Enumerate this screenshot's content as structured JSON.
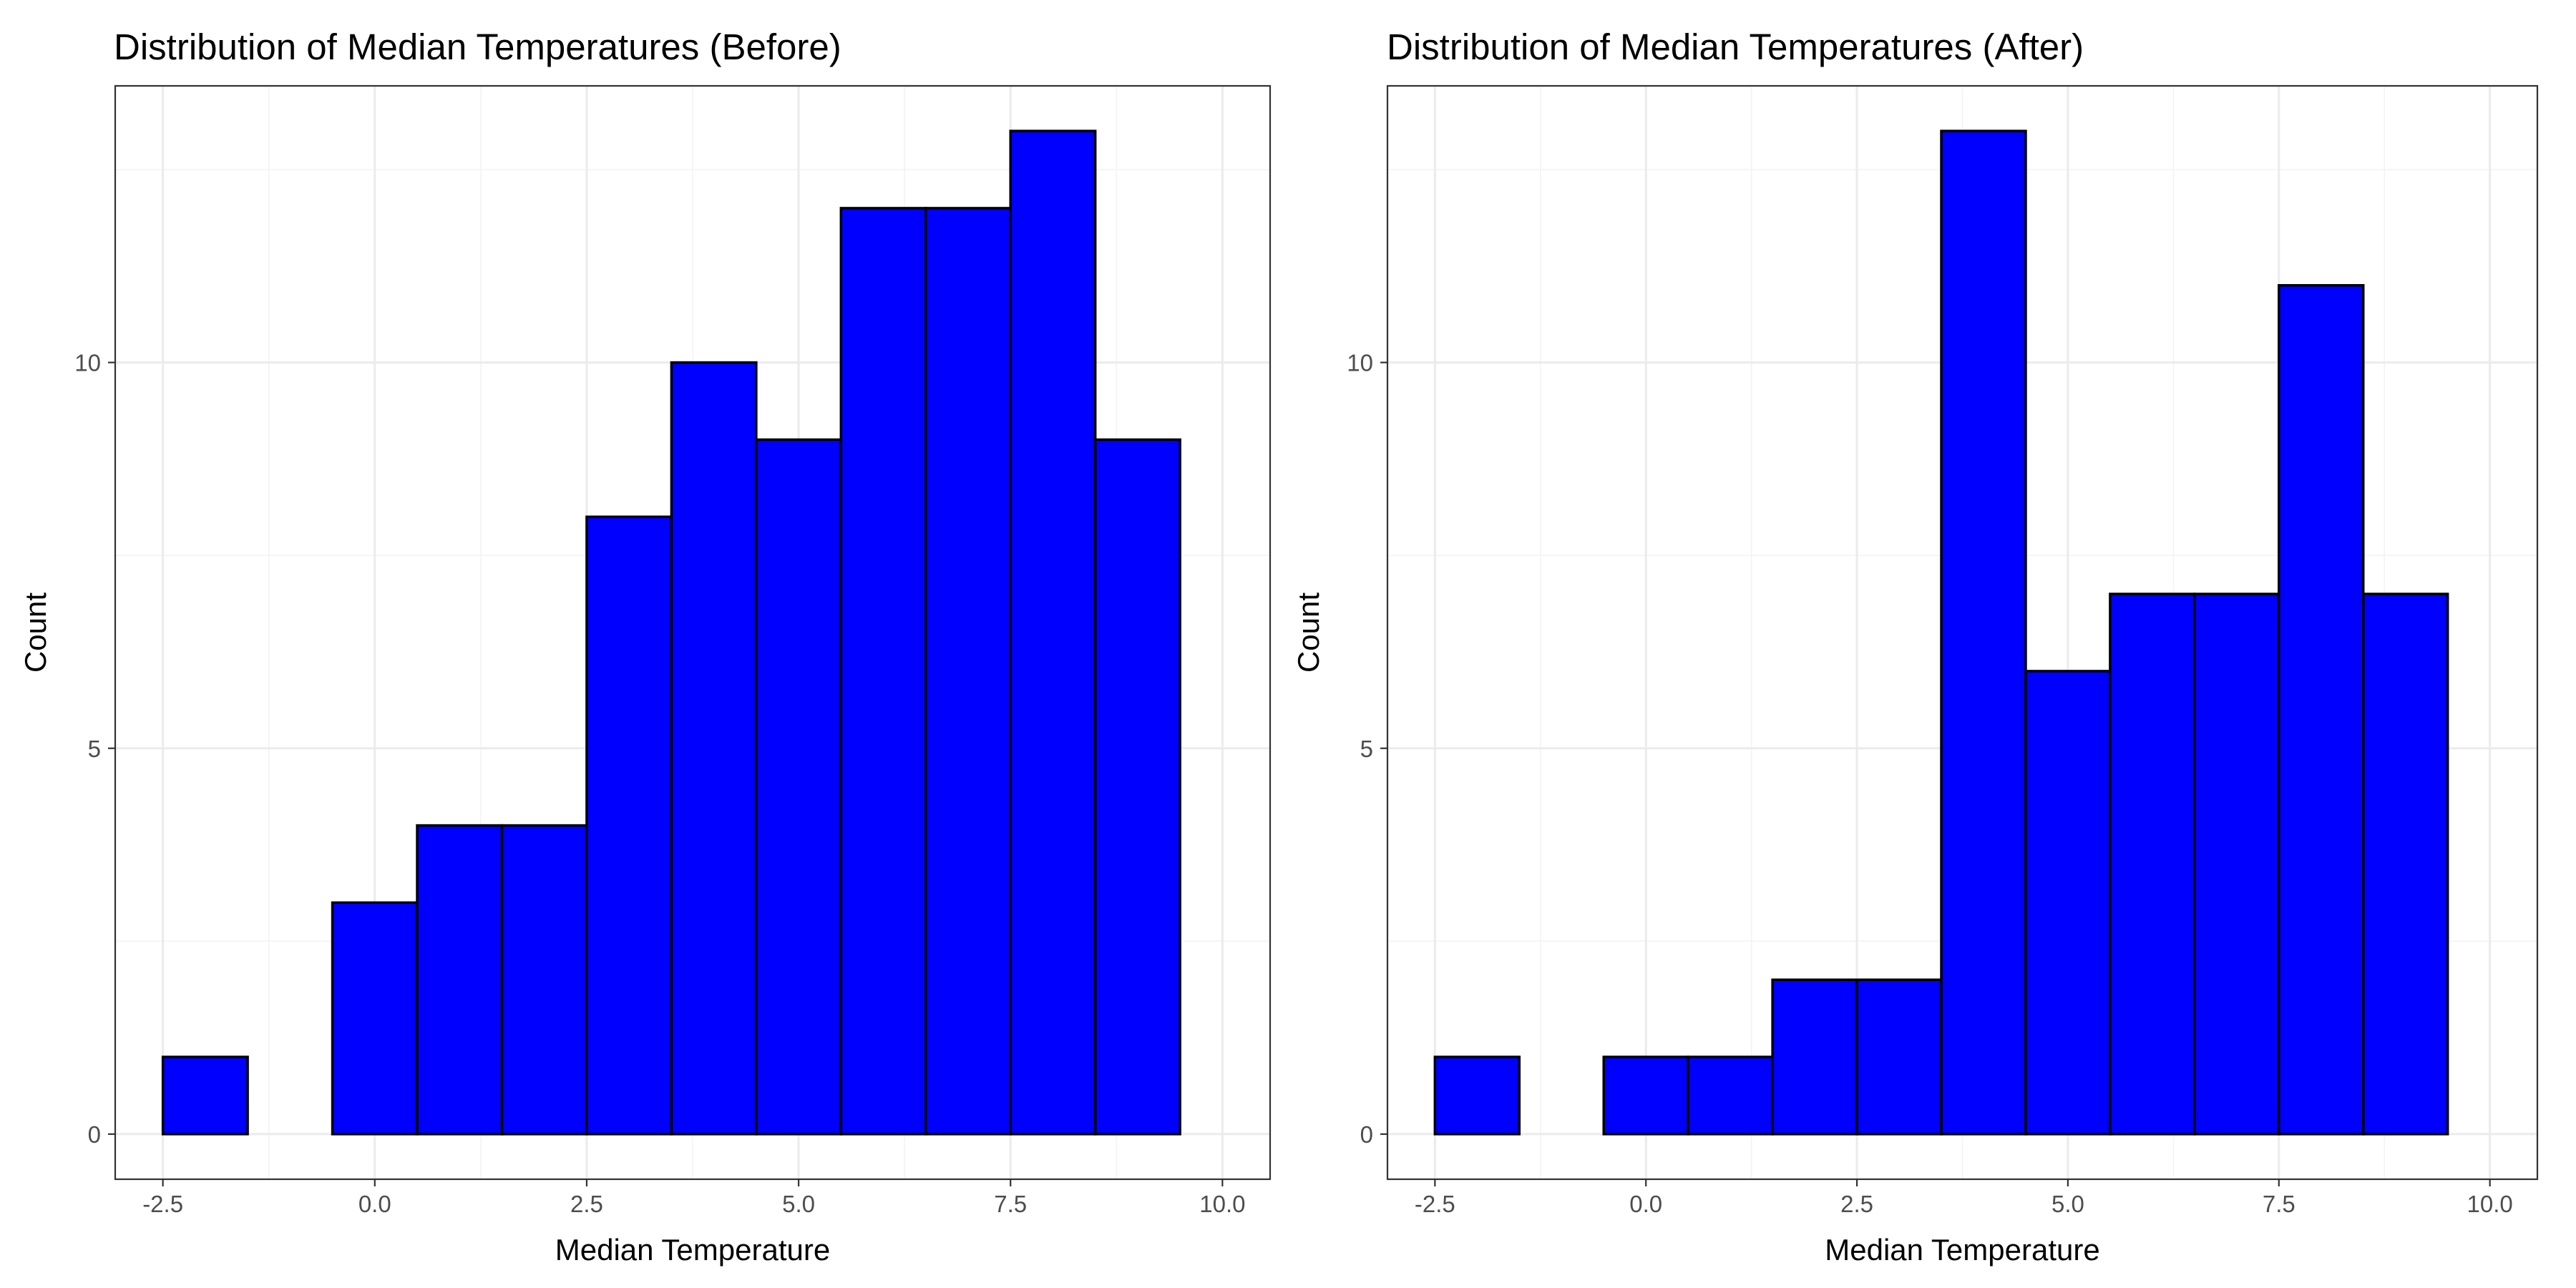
{
  "chart_data": [
    {
      "type": "bar",
      "title": "Distribution of Median Temperatures (Before)",
      "xlabel": "Median Temperature",
      "ylabel": "Count",
      "bin_width": 1,
      "bin_centers": [
        -2,
        -1,
        0,
        1,
        2,
        3,
        4,
        5,
        6,
        7,
        8,
        9
      ],
      "counts": [
        1,
        0,
        3,
        4,
        4,
        8,
        10,
        9,
        12,
        12,
        13,
        9
      ],
      "xlim": [
        -2.5,
        9.5
      ],
      "ylim": [
        0,
        13
      ],
      "x_ticks": [
        -2.5,
        0.0,
        2.5,
        5.0,
        7.5,
        10.0
      ],
      "x_tick_labels": [
        "-2.5",
        "0.0",
        "2.5",
        "5.0",
        "7.5",
        "10.0"
      ],
      "y_ticks": [
        0,
        5,
        10
      ],
      "y_tick_labels": [
        "0",
        "5",
        "10"
      ],
      "fill_color": "#0000ff",
      "outline_color": "#000000",
      "grid": true,
      "legend": "none"
    },
    {
      "type": "bar",
      "title": "Distribution of Median Temperatures (After)",
      "xlabel": "Median Temperature",
      "ylabel": "Count",
      "bin_width": 1,
      "bin_centers": [
        -2,
        -1,
        0,
        1,
        2,
        3,
        4,
        5,
        6,
        7,
        8,
        9
      ],
      "counts": [
        1,
        0,
        1,
        1,
        2,
        2,
        13,
        6,
        7,
        7,
        11,
        7
      ],
      "xlim": [
        -2.5,
        9.5
      ],
      "ylim": [
        0,
        13
      ],
      "x_ticks": [
        -2.5,
        0.0,
        2.5,
        5.0,
        7.5,
        10.0
      ],
      "x_tick_labels": [
        "-2.5",
        "0.0",
        "2.5",
        "5.0",
        "7.5",
        "10.0"
      ],
      "y_ticks": [
        0,
        5,
        10
      ],
      "y_tick_labels": [
        "0",
        "5",
        "10"
      ],
      "fill_color": "#0000ff",
      "outline_color": "#000000",
      "grid": true,
      "legend": "none"
    }
  ]
}
